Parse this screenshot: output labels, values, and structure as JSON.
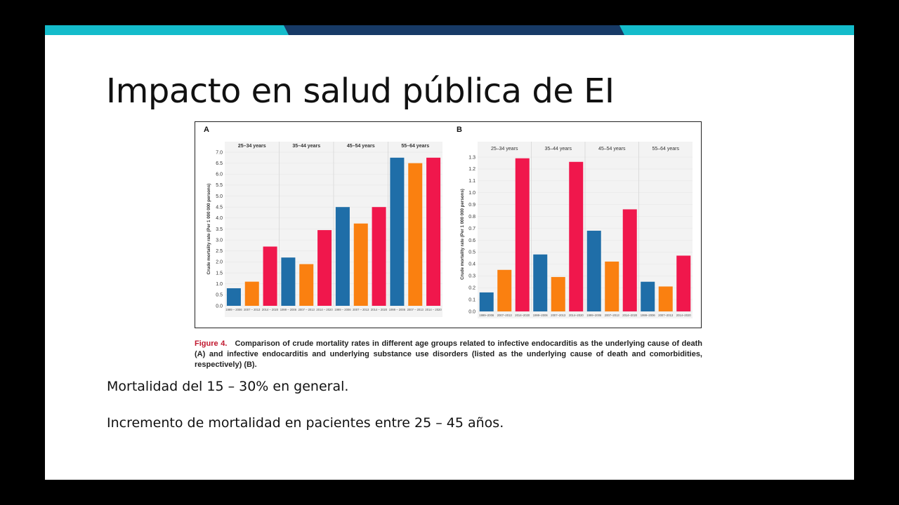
{
  "slide": {
    "title": "Impacto en salud pública de EI",
    "bullets": [
      "Mortalidad del 15 – 30% en general.",
      "Incremento de mortalidad en pacientes entre 25 – 45 años."
    ],
    "band_colors": {
      "teal": "#14bccb",
      "navy": "#173a66"
    }
  },
  "caption": {
    "label": "Figure 4.",
    "text": "Comparison of crude mortality rates in different age groups related to infective endocarditis as the underlying cause of death (A) and infective endocarditis and underlying substance use disorders (listed as the underlying cause of death and comorbidities, respectively) (B)."
  },
  "series_colors": [
    "#1f6ea8",
    "#fa8010",
    "#f0174c"
  ],
  "chart_data": [
    {
      "type": "bar",
      "panel": "A",
      "ylabel": "Crude mortality rate (Per 1 000 000 persons)",
      "yticks": [
        "0.0",
        "0.5",
        "1.0",
        "1.5",
        "2.0",
        "2.5",
        "3.0",
        "3.5",
        "4.0",
        "4.5",
        "5.0",
        "5.5",
        "6.0",
        "6.5",
        "7.0"
      ],
      "ylim": [
        0,
        7.0
      ],
      "groups": [
        {
          "label": "25–34 years",
          "periods": [
            "1999 – 2006",
            "2007 – 2013",
            "2014 – 2020"
          ],
          "values": [
            0.8,
            1.1,
            2.7
          ]
        },
        {
          "label": "35–44 years",
          "periods": [
            "1999 – 2006",
            "2007 – 2013",
            "2014 – 2020"
          ],
          "values": [
            2.2,
            1.9,
            3.45
          ]
        },
        {
          "label": "45–54 years",
          "periods": [
            "1999 – 2006",
            "2007 – 2013",
            "2014 – 2020"
          ],
          "values": [
            4.5,
            3.75,
            4.5
          ]
        },
        {
          "label": "55–64 years",
          "periods": [
            "1999 – 2006",
            "2007 – 2013",
            "2014 – 2020"
          ],
          "values": [
            6.75,
            6.5,
            6.75
          ]
        }
      ],
      "grid": "light"
    },
    {
      "type": "bar",
      "panel": "B",
      "ylabel": "Crude mortality rate (Per 1 000 000 persons)",
      "yticks": [
        "0.0",
        "0.1",
        "0.2",
        "0.3",
        "0.4",
        "0.5",
        "0.6",
        "0.7",
        "0.8",
        "0.9",
        "1.0",
        "1.1",
        "1.2",
        "1.3"
      ],
      "ylim": [
        0,
        1.3
      ],
      "groups": [
        {
          "label": "25–34 years",
          "periods": [
            "1999–2006",
            "2007–2013",
            "2014–2020"
          ],
          "values": [
            0.16,
            0.35,
            1.29
          ]
        },
        {
          "label": "35–44 years",
          "periods": [
            "1999–2006",
            "2007–2013",
            "2014–2020"
          ],
          "values": [
            0.48,
            0.29,
            1.26
          ]
        },
        {
          "label": "45–54 years",
          "periods": [
            "1999–2006",
            "2007–2013",
            "2014–2020"
          ],
          "values": [
            0.68,
            0.42,
            0.86
          ]
        },
        {
          "label": "55–64 years",
          "periods": [
            "1999–2006",
            "2007–2013",
            "2014–2020"
          ],
          "values": [
            0.25,
            0.21,
            0.47
          ]
        }
      ],
      "grid": "light"
    }
  ]
}
